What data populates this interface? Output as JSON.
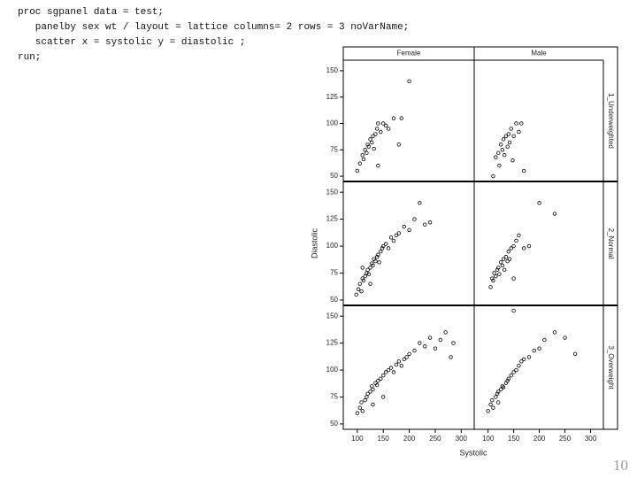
{
  "code": [
    "proc sgpanel data = test;",
    "   panelby sex wt / layout = lattice columns= 2 rows = 3 noVarName;",
    "   scatter x = systolic y = diastolic ;",
    "run;"
  ],
  "page_number": "10",
  "chart_data": {
    "type": "scatter",
    "x_label": "Systolic",
    "y_label": "Diastolic",
    "columns": [
      "Female",
      "Male"
    ],
    "rows": [
      "1_Underweighted",
      "2_Normal",
      "3_Overweight"
    ],
    "xlim": [
      73,
      325
    ],
    "xticks": [
      100,
      150,
      200,
      250,
      300
    ],
    "ylim": [
      45,
      160
    ],
    "yticks": [
      50,
      75,
      100,
      125,
      150
    ],
    "color": "#000000",
    "panels": [
      {
        "x": [
          100,
          105,
          110,
          112,
          115,
          118,
          120,
          122,
          125,
          128,
          130,
          132,
          135,
          138,
          140,
          145,
          150,
          155,
          160,
          170,
          180,
          185,
          200,
          140
        ],
        "y": [
          55,
          62,
          70,
          66,
          75,
          72,
          80,
          78,
          85,
          82,
          88,
          76,
          90,
          95,
          100,
          92,
          100,
          98,
          95,
          105,
          80,
          105,
          140,
          60
        ]
      },
      {
        "x": [
          110,
          115,
          120,
          122,
          125,
          128,
          130,
          132,
          135,
          138,
          140,
          142,
          145,
          150,
          155,
          160,
          165,
          170,
          148
        ],
        "y": [
          50,
          68,
          72,
          60,
          80,
          75,
          85,
          70,
          88,
          78,
          90,
          82,
          95,
          88,
          100,
          92,
          100,
          55,
          65
        ]
      },
      {
        "x": [
          98,
          102,
          105,
          108,
          110,
          112,
          115,
          118,
          120,
          122,
          125,
          128,
          130,
          132,
          135,
          138,
          140,
          142,
          145,
          148,
          150,
          155,
          160,
          165,
          170,
          175,
          180,
          190,
          200,
          210,
          220,
          230,
          240,
          125,
          110
        ],
        "y": [
          55,
          60,
          65,
          58,
          70,
          68,
          72,
          75,
          78,
          74,
          80,
          84,
          82,
          88,
          86,
          90,
          92,
          85,
          95,
          98,
          100,
          102,
          98,
          108,
          105,
          110,
          112,
          118,
          115,
          125,
          140,
          120,
          122,
          65,
          80
        ]
      },
      {
        "x": [
          105,
          108,
          110,
          112,
          115,
          118,
          120,
          122,
          125,
          128,
          130,
          132,
          135,
          138,
          140,
          142,
          145,
          150,
          155,
          160,
          170,
          180,
          200,
          230,
          150
        ],
        "y": [
          62,
          70,
          68,
          75,
          72,
          78,
          80,
          74,
          85,
          82,
          88,
          78,
          90,
          86,
          95,
          88,
          98,
          100,
          105,
          110,
          98,
          100,
          140,
          130,
          70
        ]
      },
      {
        "x": [
          100,
          105,
          108,
          110,
          115,
          118,
          120,
          125,
          128,
          130,
          135,
          138,
          140,
          145,
          150,
          155,
          160,
          165,
          170,
          175,
          180,
          185,
          190,
          195,
          200,
          210,
          220,
          230,
          240,
          250,
          260,
          270,
          280,
          285,
          130,
          150
        ],
        "y": [
          60,
          65,
          70,
          62,
          72,
          75,
          78,
          80,
          85,
          82,
          88,
          86,
          90,
          92,
          95,
          98,
          100,
          102,
          98,
          105,
          108,
          104,
          110,
          112,
          115,
          118,
          125,
          122,
          130,
          120,
          128,
          135,
          112,
          125,
          68,
          75
        ]
      },
      {
        "x": [
          100,
          105,
          108,
          110,
          115,
          118,
          120,
          125,
          128,
          130,
          135,
          138,
          140,
          145,
          150,
          155,
          160,
          165,
          170,
          180,
          190,
          200,
          210,
          230,
          250,
          270,
          150,
          120
        ],
        "y": [
          62,
          68,
          72,
          65,
          75,
          78,
          80,
          82,
          85,
          84,
          88,
          90,
          92,
          95,
          98,
          100,
          104,
          108,
          110,
          112,
          118,
          120,
          128,
          135,
          130,
          115,
          155,
          70
        ]
      }
    ]
  }
}
